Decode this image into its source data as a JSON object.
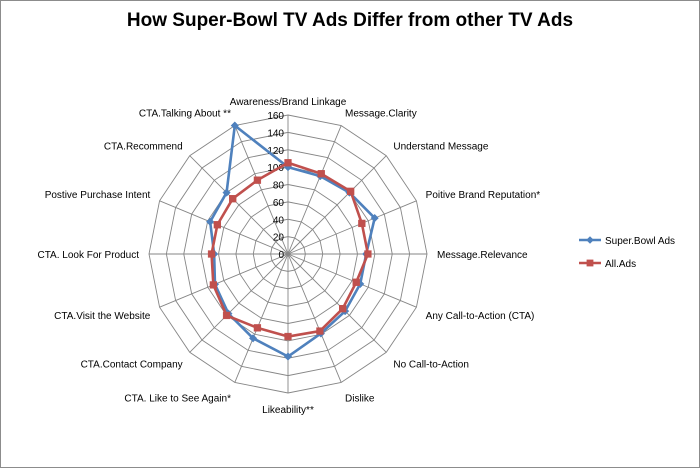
{
  "chart_data": {
    "type": "radar",
    "title": "How Super-Bowl TV Ads Differ from other TV Ads",
    "categories": [
      "Awareness/Brand Linkage",
      "Message.Clarity",
      "Understand Message",
      "Poitive Brand Reputation*",
      "Message.Relevance",
      "Any Call-to-Action (CTA)",
      "No Call-to-Action",
      "Dislike",
      "Likeability**",
      "CTA. Like to See Again*",
      "CTA.Contact Company",
      "CTA.Visit the Website",
      "CTA. Look For Product",
      "Postive Purchase Intent",
      "CTA.Recommend",
      "CTA.Talking About **"
    ],
    "rmin": 0,
    "rmax": 160,
    "ticks": [
      "0",
      "20",
      "40",
      "60",
      "80",
      "100",
      "120",
      "140",
      "160"
    ],
    "tick_values": [
      0,
      20,
      40,
      60,
      80,
      100,
      120,
      140,
      160
    ],
    "series": [
      {
        "name": "Super.Bowl Ads",
        "color": "#4f81bd",
        "marker": "diamond",
        "values": [
          100,
          97,
          100,
          108,
          90,
          90,
          93,
          99,
          118,
          105,
          97,
          91,
          85,
          97,
          100,
          160
        ]
      },
      {
        "name": "All.Ads",
        "color": "#c0504d",
        "marker": "square",
        "values": [
          105,
          100,
          102,
          92,
          92,
          85,
          89,
          96,
          95,
          92,
          100,
          93,
          88,
          88,
          90,
          92
        ]
      }
    ],
    "legend_position": "right"
  }
}
